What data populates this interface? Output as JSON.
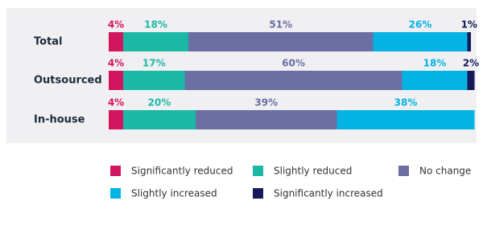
{
  "chart_data": {
    "type": "stacked-bar-horizontal",
    "categories": [
      "Total",
      "Outsourced",
      "In-house"
    ],
    "series": [
      {
        "name": "Significantly reduced",
        "color": "#d3145f",
        "values": [
          4,
          4,
          4
        ],
        "value_labels": [
          "4%",
          "4%",
          "4%"
        ]
      },
      {
        "name": "Slightly reduced",
        "color": "#1cb8a6",
        "values": [
          18,
          17,
          20
        ],
        "value_labels": [
          "18%",
          "17%",
          "20%"
        ]
      },
      {
        "name": "No change",
        "color": "#6a6ea3",
        "values": [
          51,
          60,
          39
        ],
        "value_labels": [
          "51%",
          "60%",
          "39%"
        ]
      },
      {
        "name": "Slightly increased",
        "color": "#03b3e4",
        "values": [
          26,
          18,
          38
        ],
        "value_labels": [
          "26%",
          "18%",
          "38%"
        ]
      },
      {
        "name": "Significantly increased",
        "color": "#16195a",
        "values": [
          1,
          2,
          null
        ],
        "value_labels": [
          "1%",
          "2%",
          null
        ]
      }
    ]
  }
}
